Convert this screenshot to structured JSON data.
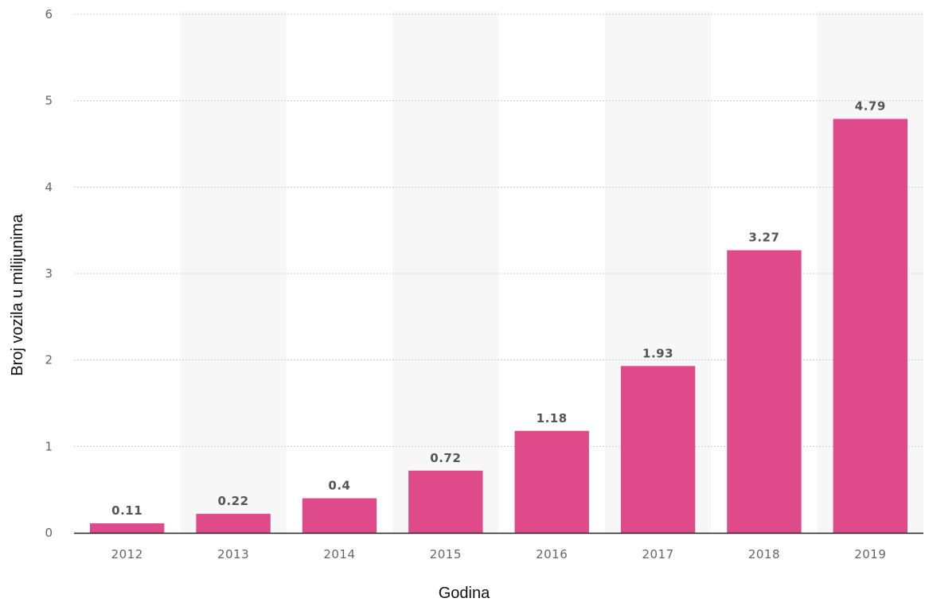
{
  "chart_data": {
    "type": "bar",
    "categories": [
      "2012",
      "2013",
      "2014",
      "2015",
      "2016",
      "2017",
      "2018",
      "2019"
    ],
    "values": [
      0.11,
      0.22,
      0.4,
      0.72,
      1.18,
      1.93,
      3.27,
      4.79
    ],
    "data_labels": [
      "0.11",
      "0.22",
      "0.4",
      "0.72",
      "1.18",
      "1.93",
      "3.27",
      "4.79"
    ],
    "xlabel": "Godina",
    "ylabel": "Broj vozila u milijunima",
    "ylim": [
      0,
      6
    ],
    "yticks": [
      "0",
      "1",
      "2",
      "3",
      "4",
      "5",
      "6"
    ],
    "grid": true,
    "legend": "none",
    "colors": {
      "bar": "#de4a8a",
      "band": "#f7f7f7",
      "grid": "#cccccc",
      "axis": "#222222"
    }
  }
}
